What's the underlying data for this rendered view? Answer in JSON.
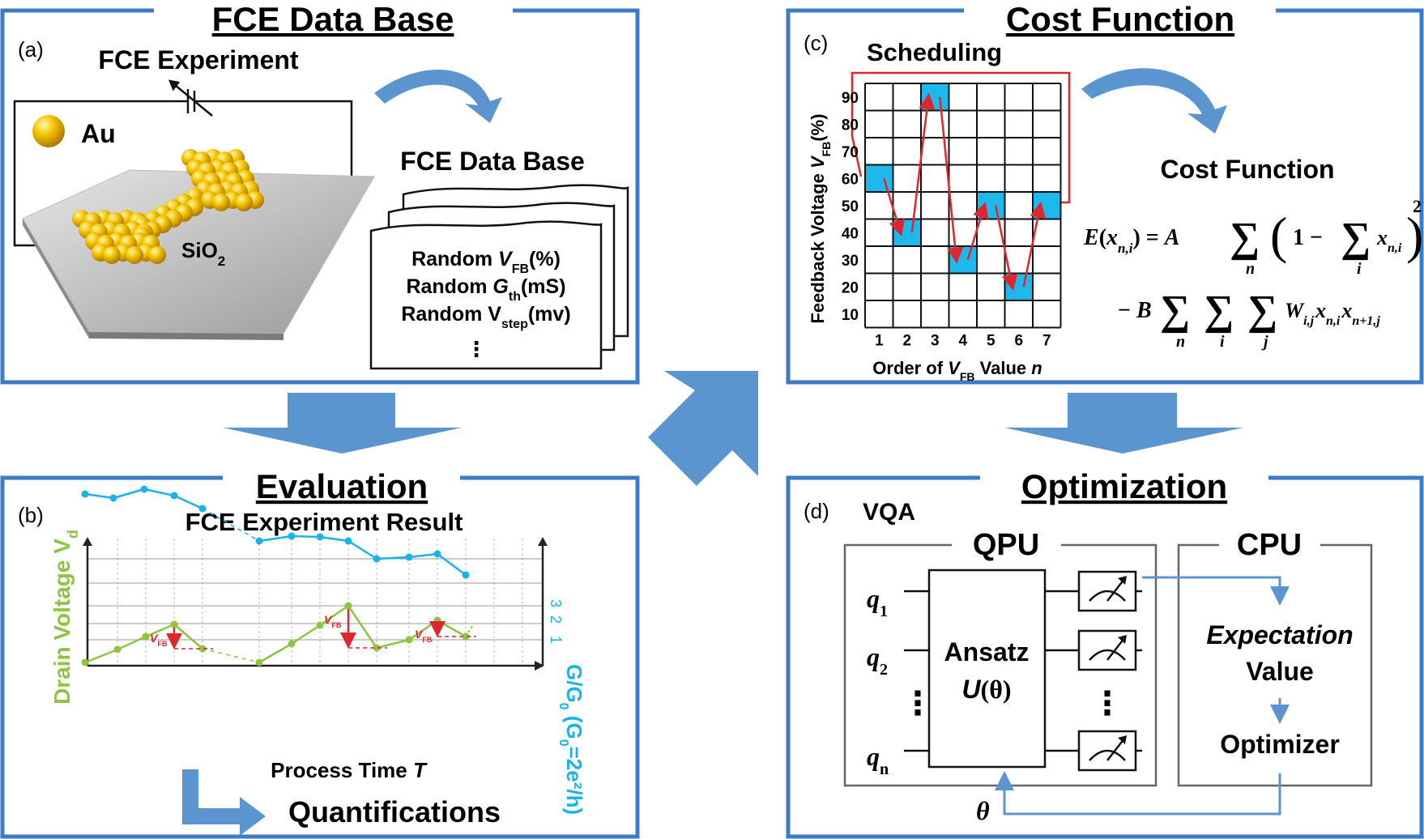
{
  "colors": {
    "frame": "#3b7dc4",
    "arrow": "#5b95cf",
    "cell_fill": "#1fb8ec",
    "schedule_arrow": "#e0262d",
    "green": "#8cc63f",
    "cyan": "#1ab2e8",
    "gray_box": "#666666"
  },
  "panel_a": {
    "title": "FCE Data Base",
    "tag": "(a)",
    "experiment_label": "FCE Experiment",
    "au_label": "Au",
    "substrate_main": "SiO",
    "substrate_sub": "2",
    "database_label": "FCE Data Base",
    "card_lines": [
      {
        "pre": "Random ",
        "sym": "V",
        "sub": "FB",
        "post": "(%)"
      },
      {
        "pre": "Random ",
        "sym": "G",
        "sub": "th",
        "post": "(mS)"
      },
      {
        "pre": "Random V",
        "sym": "",
        "sub": "step",
        "post": "(mv)"
      }
    ],
    "card_more": "⋮"
  },
  "panel_b": {
    "title": "Evaluation",
    "tag": "(b)",
    "subtitle": "FCE Experiment Result",
    "left_axis": {
      "pre": "Drain Voltage  V",
      "sub": "d"
    },
    "right_axis": {
      "pre": "G/G",
      "sub0": "0",
      "mid": " (G",
      "sub1": "0",
      "post": "=2e²/h)"
    },
    "right_ticks": [
      "3",
      "2",
      "1"
    ],
    "xlabel_pre": "Process Time ",
    "xlabel_sym": "T",
    "vfb_label": "V",
    "vfb_sub": "FB",
    "quant_label": "Quantifications",
    "drain_points": [
      [
        105,
        818
      ],
      [
        145,
        802
      ],
      [
        180,
        786
      ],
      [
        215,
        771
      ],
      [
        250,
        801
      ],
      [
        320,
        818
      ],
      [
        360,
        795
      ],
      [
        395,
        772
      ],
      [
        430,
        748
      ],
      [
        465,
        800
      ],
      [
        505,
        790
      ],
      [
        540,
        766
      ],
      [
        575,
        786
      ]
    ],
    "conductance_points": [
      [
        105,
        610
      ],
      [
        140,
        615
      ],
      [
        178,
        604
      ],
      [
        215,
        612
      ],
      [
        250,
        628
      ],
      [
        320,
        668
      ],
      [
        360,
        662
      ],
      [
        395,
        663
      ],
      [
        430,
        668
      ],
      [
        465,
        690
      ],
      [
        505,
        688
      ],
      [
        540,
        684
      ],
      [
        575,
        710
      ]
    ]
  },
  "panel_c": {
    "title": "Cost Function",
    "tag": "(c)",
    "scheduling_label": "Scheduling",
    "ylabel_pre": "Feedback Voltage ",
    "ylabel_sym": "V",
    "ylabel_sub": "FB",
    "ylabel_post": "(%)",
    "y_ticks": [
      "90",
      "80",
      "70",
      "60",
      "50",
      "40",
      "30",
      "20",
      "10"
    ],
    "x_ticks": [
      "1",
      "2",
      "3",
      "4",
      "5",
      "6",
      "7"
    ],
    "xlabel_pre": "Order of ",
    "xlabel_sym": "V",
    "xlabel_sub": "FB",
    "xlabel_post": " Value ",
    "xlabel_n": "n",
    "schedule": [
      60,
      40,
      90,
      30,
      50,
      20,
      50
    ],
    "cost_label": "Cost Function"
  },
  "panel_d": {
    "title": "Optimization",
    "tag": "(d)",
    "vqa_label": "VQA",
    "qpu_label": "QPU",
    "cpu_label": "CPU",
    "qubits": [
      {
        "sym": "q",
        "sub": "1"
      },
      {
        "sym": "q",
        "sub": "2"
      },
      {
        "sym": "q",
        "sub": "n"
      }
    ],
    "ansatz_line1": "Ansatz",
    "ansatz_u": "U",
    "ansatz_theta": "(θ)",
    "expectation_line1": "Expectation",
    "expectation_line2": "Value",
    "optimizer_label": "Optimizer",
    "theta_label": "θ",
    "vdots": "⋮"
  }
}
